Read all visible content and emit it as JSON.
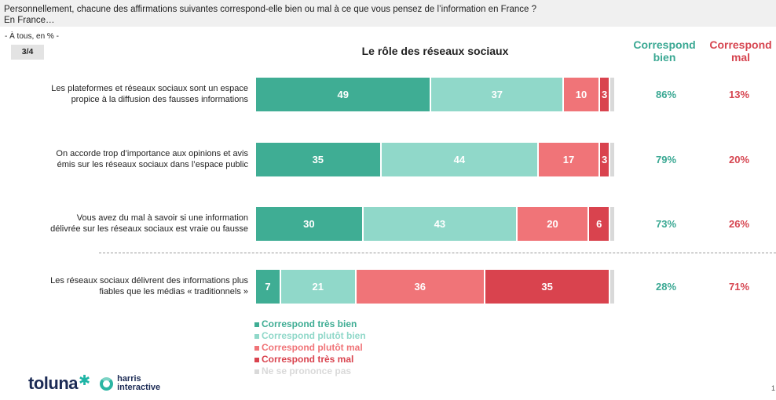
{
  "header": {
    "question": "Personnellement, chacune des affirmations suivantes correspond-elle bien ou mal à ce que vous pensez de l’information en France ?",
    "subquestion": "En France…",
    "base": "- À tous, en % -",
    "page_badge": "3/4"
  },
  "columns": {
    "good": "Correspond bien",
    "bad": "Correspond mal"
  },
  "colors": {
    "tres_bien": "#3fad94",
    "plutot_bien": "#90d8c9",
    "plutot_mal": "#f07478",
    "tres_mal": "#d9434e",
    "nsp": "#d9d9d9",
    "good_text": "#3aa893",
    "bad_text": "#d64550"
  },
  "chart_data": {
    "type": "bar",
    "orientation": "horizontal",
    "stacked": true,
    "title": "Le rôle des réseaux sociaux",
    "categories": [
      "Les plateformes et réseaux sociaux sont un espace propice à la diffusion des fausses informations",
      "On accorde trop d’importance aux opinions et avis émis sur les réseaux sociaux dans l’espace public",
      "Vous avez du mal à savoir si une information délivrée sur les réseaux sociaux est vraie ou fausse",
      "Les réseaux sociaux délivrent des informations plus fiables que les médias « traditionnels »"
    ],
    "category_lines": [
      [
        "Les plateformes et réseaux sociaux sont un espace",
        "propice à la diffusion des fausses informations"
      ],
      [
        "On accorde trop d’importance aux opinions et avis",
        "émis sur les réseaux sociaux dans l’espace public"
      ],
      [
        "Vous avez du mal à savoir si une information",
        "délivrée sur les réseaux sociaux est vraie ou fausse"
      ],
      [
        "Les réseaux sociaux délivrent des informations plus",
        "fiables que les médias « traditionnels »"
      ]
    ],
    "series": [
      {
        "name": "Correspond très bien",
        "values": [
          49,
          35,
          30,
          7
        ]
      },
      {
        "name": "Correspond plutôt bien",
        "values": [
          37,
          44,
          43,
          21
        ]
      },
      {
        "name": "Correspond plutôt mal",
        "values": [
          10,
          17,
          20,
          36
        ]
      },
      {
        "name": "Correspond très mal",
        "values": [
          3,
          3,
          6,
          35
        ]
      },
      {
        "name": "Ne se prononce pas",
        "values": [
          1,
          1,
          1,
          1
        ]
      }
    ],
    "totals_good": [
      "86%",
      "79%",
      "73%",
      "28%"
    ],
    "totals_bad": [
      "13%",
      "20%",
      "26%",
      "71%"
    ],
    "xlim": [
      0,
      100
    ],
    "legend_position": "bottom"
  },
  "branding": {
    "toluna": "toluna",
    "harris_line1": "harris",
    "harris_line2": "interactive"
  },
  "page_number": "1"
}
